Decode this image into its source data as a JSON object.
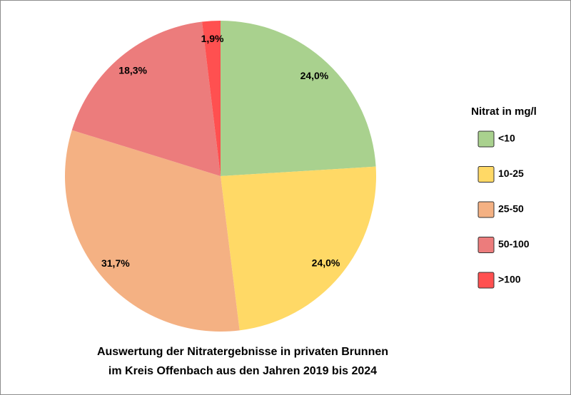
{
  "chart_data": {
    "type": "pie",
    "title": [
      "Auswertung der Nitratergebnisse in privaten Brunnen",
      "im Kreis Offenbach aus den Jahren 2019 bis 2024"
    ],
    "legend_title": "Nitrat in mg/l",
    "legend": "right",
    "categories": [
      "<10",
      "10-25",
      "25-50",
      "50-100",
      ">100"
    ],
    "values": [
      24.0,
      24.0,
      31.7,
      18.3,
      1.9
    ],
    "value_labels": [
      "24,0%",
      "24,0%",
      "31,7%",
      "18,3%",
      "1,9%"
    ],
    "colors": [
      "#a9d18e",
      "#ffd966",
      "#f4b183",
      "#ec7c7c",
      "#ff5050"
    ]
  }
}
